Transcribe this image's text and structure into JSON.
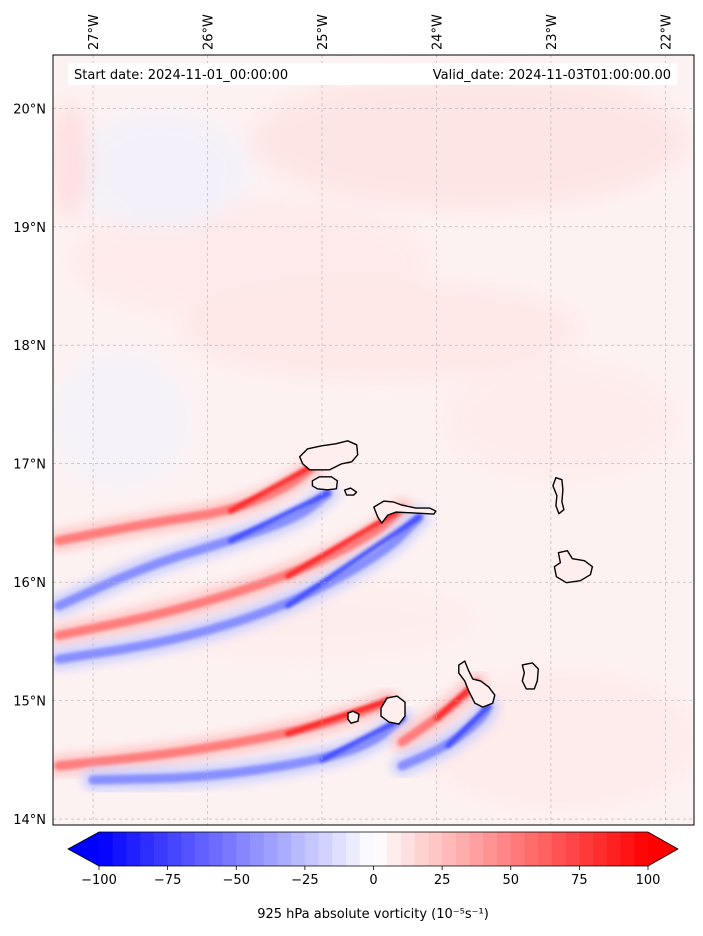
{
  "header": {
    "start_date": "Start date: 2024-11-01_00:00:00",
    "valid_date": "Valid_date: 2024-11-03T01:00:00.00"
  },
  "map": {
    "lon_range": [
      -27.35,
      -21.75
    ],
    "lat_range": [
      13.95,
      20.45
    ],
    "lon_ticks": [
      {
        "value": -27,
        "label": "27°W"
      },
      {
        "value": -26,
        "label": "26°W"
      },
      {
        "value": -25,
        "label": "25°W"
      },
      {
        "value": -24,
        "label": "24°W"
      },
      {
        "value": -23,
        "label": "23°W"
      },
      {
        "value": -22,
        "label": "22°W"
      }
    ],
    "lat_ticks": [
      {
        "value": 20,
        "label": "20°N"
      },
      {
        "value": 19,
        "label": "19°N"
      },
      {
        "value": 18,
        "label": "18°N"
      },
      {
        "value": 17,
        "label": "17°N"
      },
      {
        "value": 16,
        "label": "16°N"
      },
      {
        "value": 15,
        "label": "15°N"
      },
      {
        "value": 14,
        "label": "14°N"
      }
    ],
    "gridlines": true,
    "islands": [
      {
        "name": "Santo Antão",
        "lon": -24.95,
        "lat": 17.05
      },
      {
        "name": "São Vicente",
        "lon": -24.97,
        "lat": 16.83
      },
      {
        "name": "Santa Luzia",
        "lon": -24.75,
        "lat": 16.76
      },
      {
        "name": "São Nicolau",
        "lon": -24.25,
        "lat": 16.6
      },
      {
        "name": "Sal",
        "lon": -22.93,
        "lat": 16.73
      },
      {
        "name": "Boa Vista",
        "lon": -22.83,
        "lat": 16.08
      },
      {
        "name": "Brava",
        "lon": -24.72,
        "lat": 14.86
      },
      {
        "name": "Fogo",
        "lon": -24.38,
        "lat": 14.92
      },
      {
        "name": "Santiago",
        "lon": -23.63,
        "lat": 15.08
      },
      {
        "name": "Maio",
        "lon": -23.18,
        "lat": 15.2
      }
    ],
    "features": [
      {
        "type": "positive",
        "points": [
          [
            -27.3,
            16.35
          ],
          [
            -26.5,
            16.5
          ],
          [
            -25.8,
            16.6
          ],
          [
            -25.3,
            16.8
          ],
          [
            -25.05,
            17.0
          ]
        ]
      },
      {
        "type": "negative",
        "points": [
          [
            -27.3,
            15.8
          ],
          [
            -26.5,
            16.15
          ],
          [
            -25.8,
            16.35
          ],
          [
            -25.2,
            16.55
          ],
          [
            -24.95,
            16.75
          ]
        ]
      },
      {
        "type": "positive",
        "points": [
          [
            -27.3,
            15.55
          ],
          [
            -26.3,
            15.75
          ],
          [
            -25.3,
            16.05
          ],
          [
            -24.55,
            16.4
          ],
          [
            -24.3,
            16.62
          ]
        ]
      },
      {
        "type": "negative",
        "points": [
          [
            -27.3,
            15.35
          ],
          [
            -26.3,
            15.5
          ],
          [
            -25.3,
            15.8
          ],
          [
            -24.45,
            16.25
          ],
          [
            -24.15,
            16.55
          ]
        ]
      },
      {
        "type": "positive",
        "points": [
          [
            -27.3,
            14.45
          ],
          [
            -26.3,
            14.55
          ],
          [
            -25.3,
            14.72
          ],
          [
            -24.65,
            14.9
          ],
          [
            -24.42,
            15.0
          ]
        ]
      },
      {
        "type": "negative",
        "points": [
          [
            -27.0,
            14.33
          ],
          [
            -26.0,
            14.35
          ],
          [
            -25.0,
            14.5
          ],
          [
            -24.55,
            14.65
          ],
          [
            -24.3,
            14.85
          ]
        ]
      },
      {
        "type": "positive",
        "points": [
          [
            -24.3,
            14.65
          ],
          [
            -24.0,
            14.85
          ],
          [
            -23.75,
            15.05
          ],
          [
            -23.65,
            15.15
          ]
        ]
      },
      {
        "type": "negative",
        "points": [
          [
            -24.3,
            14.45
          ],
          [
            -23.9,
            14.62
          ],
          [
            -23.6,
            14.85
          ],
          [
            -23.55,
            14.95
          ]
        ]
      }
    ]
  },
  "colorbar": {
    "label": "925 hPa absolute vorticity (10⁻⁵s⁻¹)",
    "min": -100,
    "max": 100,
    "step": 5,
    "ticks": [
      {
        "value": -100,
        "label": "−100"
      },
      {
        "value": -75,
        "label": "−75"
      },
      {
        "value": -50,
        "label": "−50"
      },
      {
        "value": -25,
        "label": "−25"
      },
      {
        "value": 0,
        "label": "0"
      },
      {
        "value": 25,
        "label": "25"
      },
      {
        "value": 50,
        "label": "50"
      },
      {
        "value": 75,
        "label": "75"
      },
      {
        "value": 100,
        "label": "100"
      }
    ],
    "colors": {
      "negative": "#0000ff",
      "neutral": "#ffffff",
      "positive": "#ff0000"
    }
  }
}
